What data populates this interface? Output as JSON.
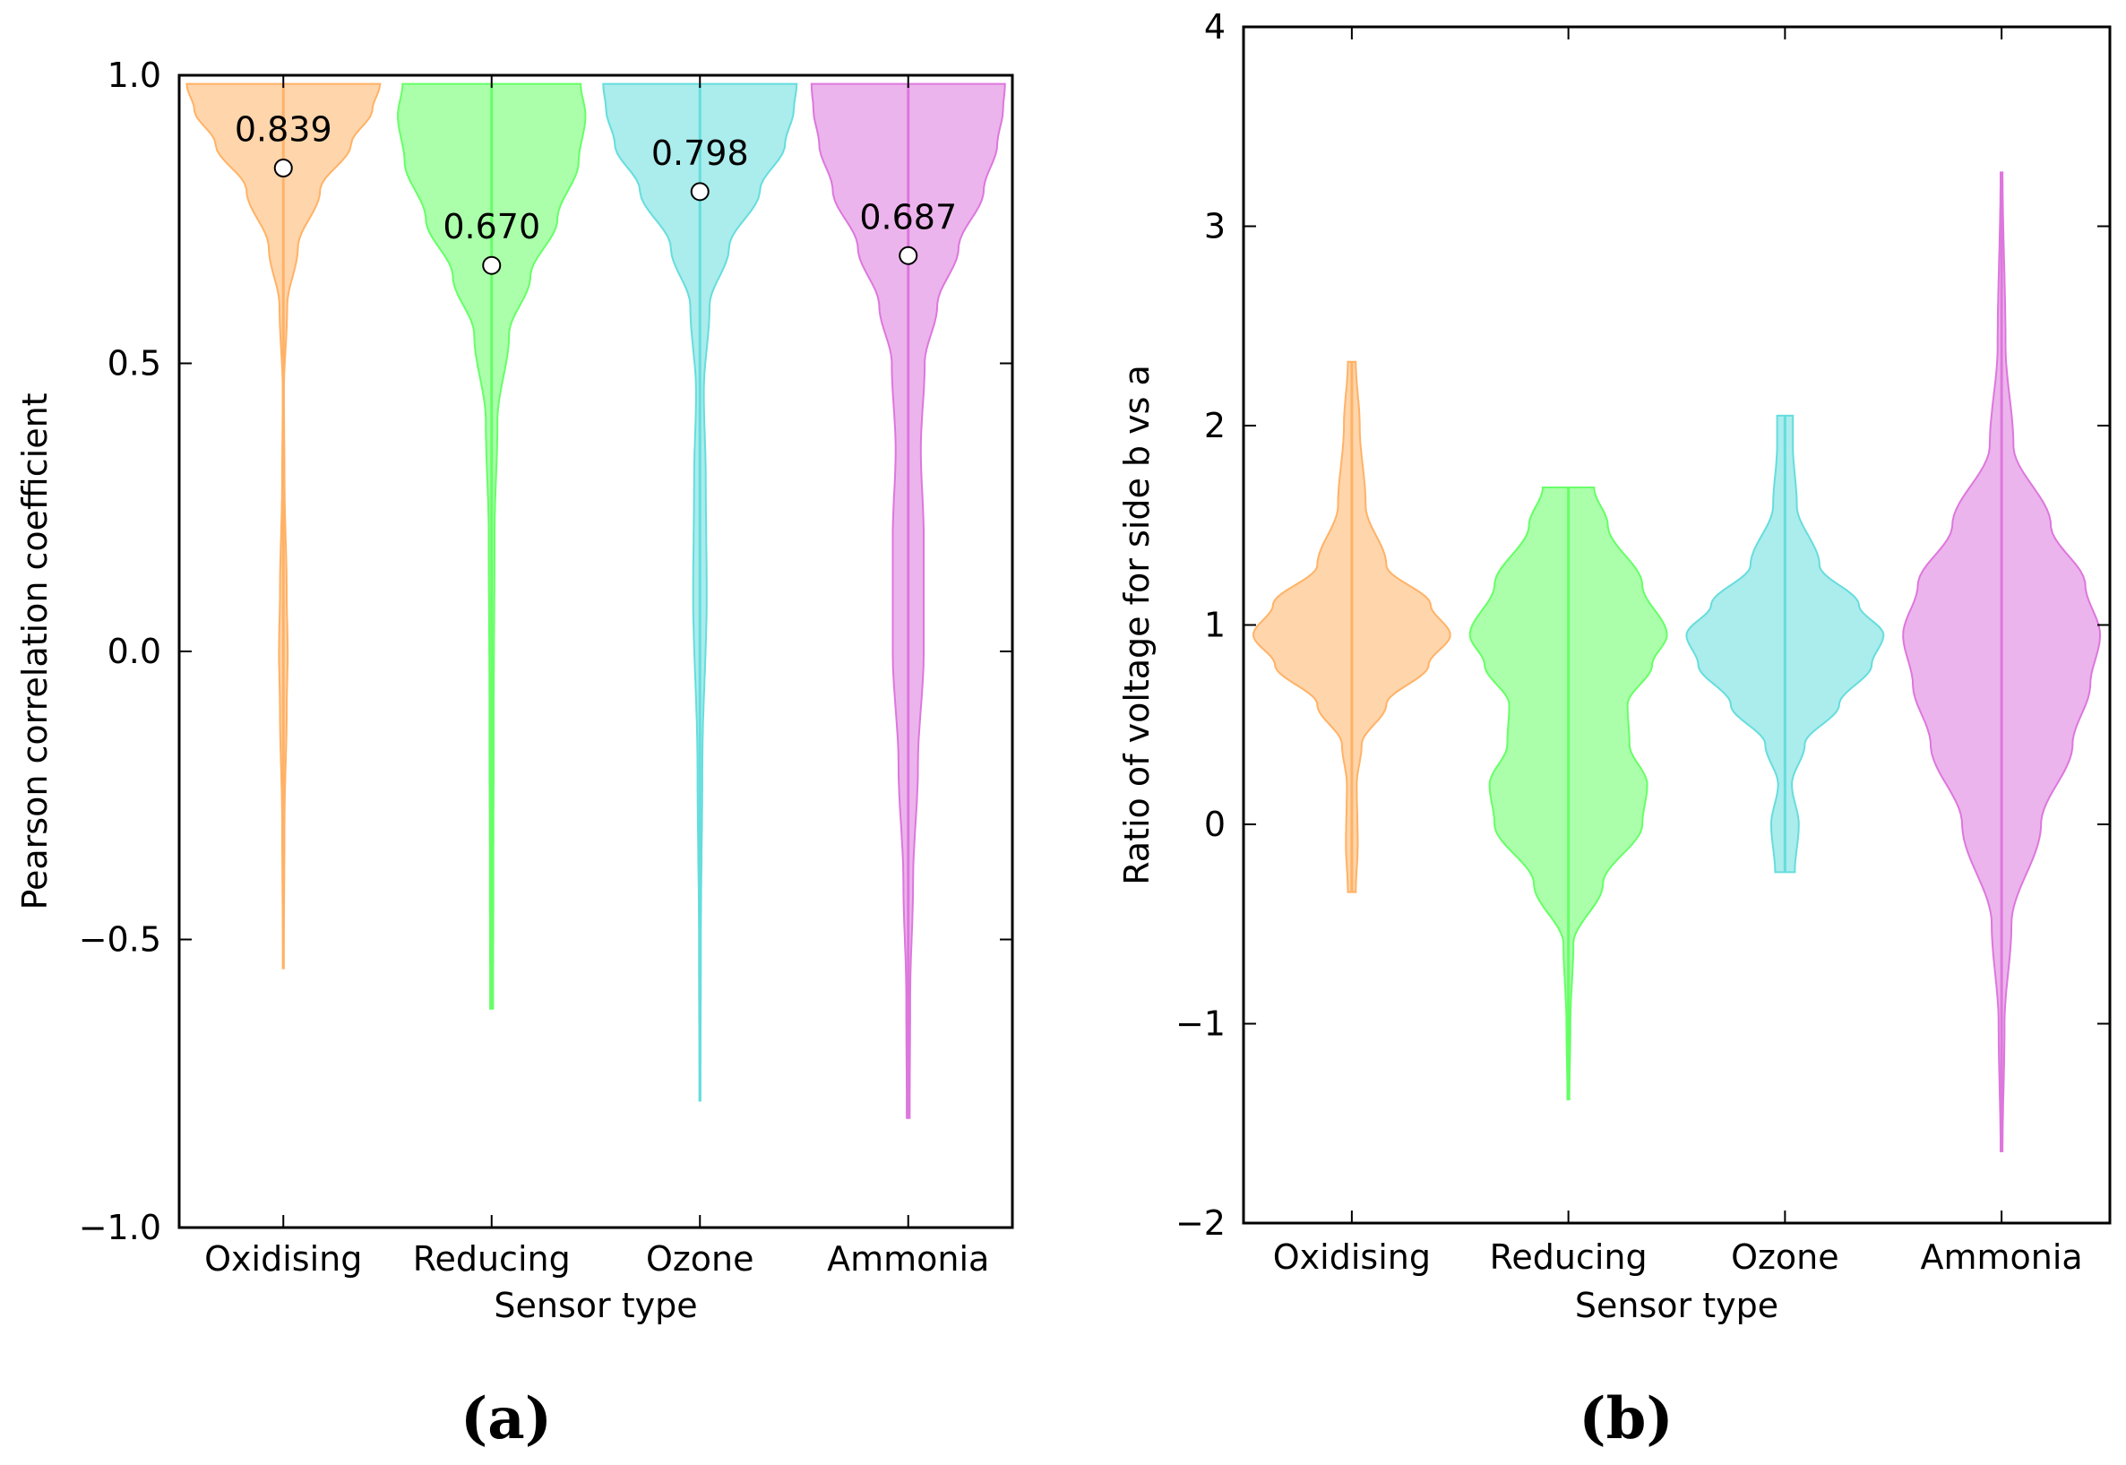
{
  "chart_data": [
    {
      "type": "violin",
      "panel_label": "(a)",
      "xlabel": "Sensor type",
      "ylabel": "Pearson correlation coefficient",
      "ylim": [
        -1.0,
        1.0
      ],
      "yticks": [
        -1.0,
        -0.5,
        0.0,
        0.5,
        1.0
      ],
      "ytick_labels": [
        "−1.0",
        "−0.5",
        "0.0",
        "0.5",
        "1.0"
      ],
      "categories": [
        "Oxidising",
        "Reducing",
        "Ozone",
        "Ammonia"
      ],
      "series": [
        {
          "name": "Oxidising",
          "color": "#ffb266",
          "min": -0.55,
          "max": 0.985,
          "mean": 0.839,
          "mean_label": "0.839",
          "density": [
            [
              -0.55,
              0.004
            ],
            [
              -0.3,
              0.012
            ],
            [
              -0.1,
              0.035
            ],
            [
              0.0,
              0.045
            ],
            [
              0.1,
              0.035
            ],
            [
              0.3,
              0.012
            ],
            [
              0.45,
              0.006
            ],
            [
              0.6,
              0.04
            ],
            [
              0.7,
              0.15
            ],
            [
              0.8,
              0.38
            ],
            [
              0.88,
              0.7
            ],
            [
              0.94,
              0.92
            ],
            [
              0.985,
              1.0
            ]
          ]
        },
        {
          "name": "Reducing",
          "color": "#66ff66",
          "min": -0.62,
          "max": 0.985,
          "mean": 0.67,
          "mean_label": "0.670",
          "density": [
            [
              -0.62,
              0.015
            ],
            [
              -0.4,
              0.018
            ],
            [
              -0.1,
              0.022
            ],
            [
              0.2,
              0.03
            ],
            [
              0.4,
              0.06
            ],
            [
              0.55,
              0.18
            ],
            [
              0.65,
              0.4
            ],
            [
              0.75,
              0.68
            ],
            [
              0.85,
              0.9
            ],
            [
              0.93,
              0.97
            ],
            [
              0.985,
              0.92
            ]
          ]
        },
        {
          "name": "Ozone",
          "color": "#66dddd",
          "min": -0.78,
          "max": 0.985,
          "mean": 0.798,
          "mean_label": "0.798",
          "density": [
            [
              -0.78,
              0.005
            ],
            [
              -0.5,
              0.01
            ],
            [
              -0.2,
              0.025
            ],
            [
              0.1,
              0.07
            ],
            [
              0.3,
              0.06
            ],
            [
              0.45,
              0.04
            ],
            [
              0.6,
              0.1
            ],
            [
              0.7,
              0.3
            ],
            [
              0.8,
              0.62
            ],
            [
              0.88,
              0.88
            ],
            [
              0.94,
              0.97
            ],
            [
              0.985,
              1.0
            ]
          ]
        },
        {
          "name": "Ammonia",
          "color": "#dd77dd",
          "min": -0.81,
          "max": 0.985,
          "mean": 0.687,
          "mean_label": "0.687",
          "density": [
            [
              -0.81,
              0.015
            ],
            [
              -0.6,
              0.02
            ],
            [
              -0.4,
              0.05
            ],
            [
              -0.2,
              0.1
            ],
            [
              0.0,
              0.16
            ],
            [
              0.2,
              0.16
            ],
            [
              0.35,
              0.13
            ],
            [
              0.5,
              0.17
            ],
            [
              0.6,
              0.3
            ],
            [
              0.7,
              0.52
            ],
            [
              0.8,
              0.78
            ],
            [
              0.88,
              0.92
            ],
            [
              0.94,
              0.98
            ],
            [
              0.985,
              1.0
            ]
          ]
        }
      ]
    },
    {
      "type": "violin",
      "panel_label": "(b)",
      "xlabel": "Sensor type",
      "ylabel": "Ratio of voltage for side b vs a",
      "ylim": [
        -2,
        4
      ],
      "yticks": [
        -2,
        -1,
        0,
        1,
        2,
        3,
        4
      ],
      "ytick_labels": [
        "−2",
        "−1",
        "0",
        "1",
        "2",
        "3",
        "4"
      ],
      "categories": [
        "Oxidising",
        "Reducing",
        "Ozone",
        "Ammonia"
      ],
      "series": [
        {
          "name": "Oxidising",
          "color": "#ffb266",
          "min": -0.34,
          "max": 2.32,
          "density": [
            [
              -0.34,
              0.04
            ],
            [
              -0.1,
              0.06
            ],
            [
              0.2,
              0.05
            ],
            [
              0.4,
              0.1
            ],
            [
              0.6,
              0.35
            ],
            [
              0.8,
              0.78
            ],
            [
              0.95,
              1.0
            ],
            [
              1.1,
              0.8
            ],
            [
              1.3,
              0.35
            ],
            [
              1.6,
              0.14
            ],
            [
              2.0,
              0.08
            ],
            [
              2.32,
              0.04
            ]
          ]
        },
        {
          "name": "Reducing",
          "color": "#66ff66",
          "min": -1.38,
          "max": 1.69,
          "density": [
            [
              -1.38,
              0.01
            ],
            [
              -1.0,
              0.02
            ],
            [
              -0.6,
              0.05
            ],
            [
              -0.3,
              0.35
            ],
            [
              0.0,
              0.75
            ],
            [
              0.2,
              0.8
            ],
            [
              0.4,
              0.62
            ],
            [
              0.6,
              0.6
            ],
            [
              0.8,
              0.85
            ],
            [
              0.95,
              1.0
            ],
            [
              1.2,
              0.75
            ],
            [
              1.5,
              0.4
            ],
            [
              1.69,
              0.26
            ]
          ]
        },
        {
          "name": "Ozone",
          "color": "#66dddd",
          "min": -0.24,
          "max": 2.05,
          "density": [
            [
              -0.24,
              0.1
            ],
            [
              0.0,
              0.14
            ],
            [
              0.2,
              0.07
            ],
            [
              0.4,
              0.2
            ],
            [
              0.6,
              0.55
            ],
            [
              0.8,
              0.88
            ],
            [
              0.95,
              1.0
            ],
            [
              1.1,
              0.75
            ],
            [
              1.3,
              0.35
            ],
            [
              1.6,
              0.12
            ],
            [
              1.9,
              0.08
            ],
            [
              2.05,
              0.08
            ]
          ]
        },
        {
          "name": "Ammonia",
          "color": "#dd77dd",
          "min": -1.64,
          "max": 3.27,
          "density": [
            [
              -1.64,
              0.01
            ],
            [
              -1.0,
              0.03
            ],
            [
              -0.5,
              0.1
            ],
            [
              0.0,
              0.4
            ],
            [
              0.4,
              0.72
            ],
            [
              0.7,
              0.9
            ],
            [
              0.95,
              1.0
            ],
            [
              1.2,
              0.85
            ],
            [
              1.5,
              0.5
            ],
            [
              1.9,
              0.12
            ],
            [
              2.4,
              0.04
            ],
            [
              3.27,
              0.01
            ]
          ]
        }
      ]
    }
  ]
}
